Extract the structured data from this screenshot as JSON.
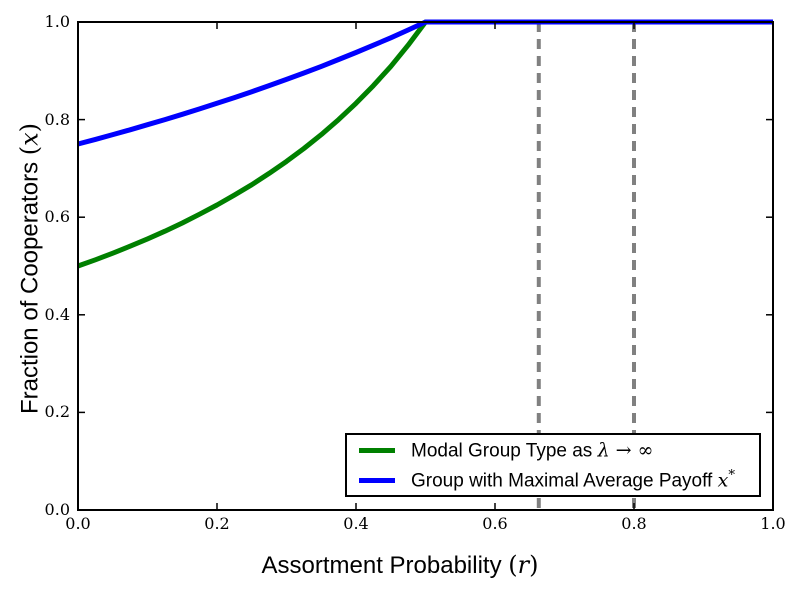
{
  "figure": {
    "background": "#ffffff",
    "axes": {
      "xlabel": {
        "prefix": "Assortment Probability ",
        "open": "(",
        "var": "r",
        "close": ")"
      },
      "ylabel": {
        "prefix": "Fraction of Cooperators ",
        "open": "(",
        "var": "x",
        "close": ")"
      },
      "xticks": [
        "0.0",
        "0.2",
        "0.4",
        "0.6",
        "0.8",
        "1.0"
      ],
      "yticks": [
        "0.0",
        "0.2",
        "0.4",
        "0.6",
        "0.8",
        "1.0"
      ],
      "spine_color": "#000000",
      "tick_color": "#000000"
    },
    "legend": {
      "items": [
        {
          "label": "Modal Group Type as ",
          "math_italic": "λ",
          "math_rest": " → ∞",
          "sup": "",
          "color": "#008000"
        },
        {
          "label": "Group with Maximal Average Payoff ",
          "math_italic": "x",
          "math_rest": "",
          "sup": "*",
          "color": "#0000ff"
        }
      ]
    }
  },
  "chart_data": {
    "type": "line",
    "title": "",
    "xlabel": "Assortment Probability (r)",
    "ylabel": "Fraction of Cooperators (x)",
    "xlim": [
      0.0,
      1.0
    ],
    "ylim": [
      0.0,
      1.0
    ],
    "xtick_values": [
      0.0,
      0.2,
      0.4,
      0.6,
      0.8,
      1.0
    ],
    "ytick_values": [
      0.0,
      0.2,
      0.4,
      0.6,
      0.8,
      1.0
    ],
    "grid": false,
    "legend_position": "lower right",
    "x": [
      0,
      0.025,
      0.05,
      0.075,
      0.1,
      0.125,
      0.15,
      0.175,
      0.2,
      0.225,
      0.25,
      0.275,
      0.3,
      0.325,
      0.35,
      0.375,
      0.4,
      0.425,
      0.45,
      0.475,
      0.5,
      0.525,
      0.55,
      0.575,
      0.6,
      0.625,
      0.65,
      0.675,
      0.7,
      0.725,
      0.75,
      0.775,
      0.8,
      0.825,
      0.85,
      0.875,
      0.9,
      0.925,
      0.95,
      0.975,
      1.0
    ],
    "series": [
      {
        "name": "Modal Group Type as λ → ∞",
        "color": "#008000",
        "linewidth": 5,
        "values": [
          0.5,
          0.5128,
          0.5263,
          0.5405,
          0.5556,
          0.5714,
          0.5882,
          0.6061,
          0.625,
          0.6452,
          0.6667,
          0.6897,
          0.7143,
          0.7407,
          0.7692,
          0.8,
          0.8333,
          0.8696,
          0.9091,
          0.9524,
          1,
          1,
          1,
          1,
          1,
          1,
          1,
          1,
          1,
          1,
          1,
          1,
          1,
          1,
          1,
          1,
          1,
          1,
          1,
          1,
          1
        ]
      },
      {
        "name": "Group with Maximal Average Payoff x*",
        "color": "#0000ff",
        "linewidth": 5,
        "values": [
          0.75,
          0.7595,
          0.7692,
          0.7792,
          0.7895,
          0.8,
          0.8108,
          0.8219,
          0.8333,
          0.8451,
          0.8571,
          0.8696,
          0.8824,
          0.8955,
          0.9091,
          0.9231,
          0.9375,
          0.9524,
          0.9677,
          0.9836,
          1,
          1,
          1,
          1,
          1,
          1,
          1,
          1,
          1,
          1,
          1,
          1,
          1,
          1,
          1,
          1,
          1,
          1,
          1,
          1,
          1
        ]
      }
    ],
    "vlines": [
      {
        "x": 0.663,
        "color": "#808080",
        "style": "dashed",
        "linewidth": 4
      },
      {
        "x": 0.8,
        "color": "#808080",
        "style": "dashed",
        "linewidth": 4
      }
    ]
  }
}
